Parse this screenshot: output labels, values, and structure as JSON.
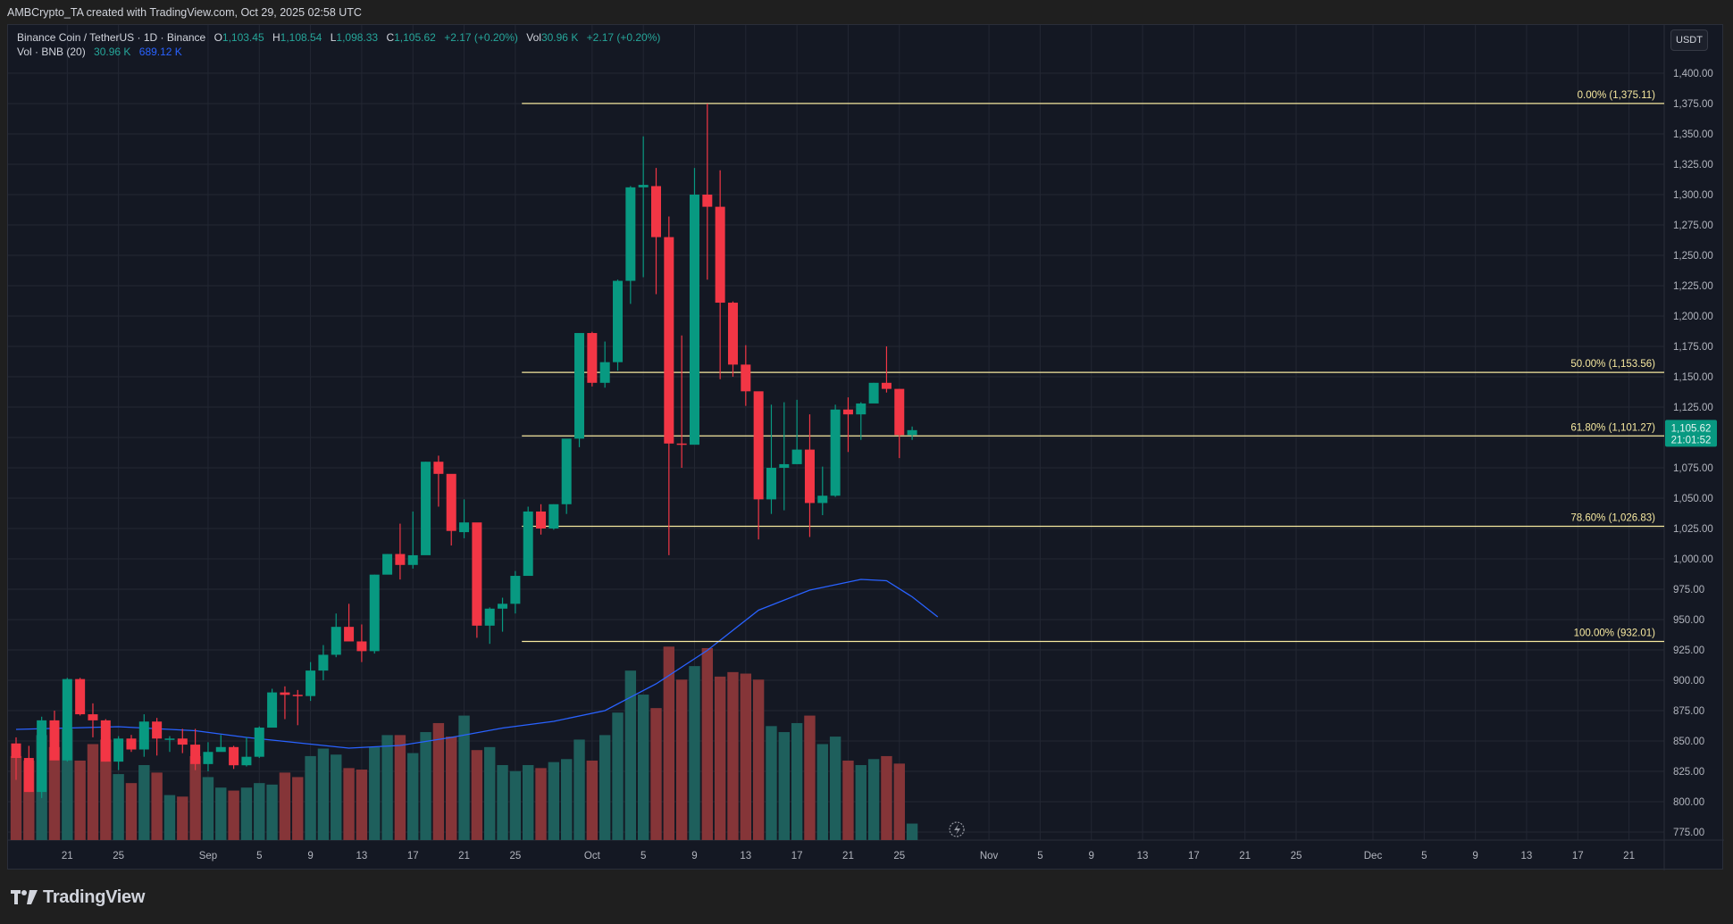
{
  "topbar": {
    "text": "AMBCrypto_TA created with TradingView.com, Oct 29, 2025 02:58 UTC"
  },
  "legend": {
    "symbol": "Binance Coin / TetherUS · 1D · Binance",
    "o_label": "O",
    "o": "1,103.45",
    "h_label": "H",
    "h": "1,108.54",
    "l_label": "L",
    "l": "1,098.33",
    "c_label": "C",
    "c": "1,105.62",
    "change": "+2.17 (+0.20%)",
    "vol_label": "Vol",
    "vol": "30.96 K",
    "vol_change": "+2.17 (+0.20%)",
    "vol_indicator": "Vol · BNB (20)",
    "vol_value": "30.96 K",
    "vol_ma": "689.12 K"
  },
  "currency": "USDT",
  "footer": {
    "brand": "TradingView"
  },
  "colors": {
    "up": "#089981",
    "down": "#f23645",
    "vol_up": "#1e5f5c",
    "vol_down": "#853538",
    "ma": "#2962ff",
    "fib": "#f7e9a0",
    "bg": "#141823",
    "grid": "#232733",
    "text": "#b2b5be"
  },
  "chart_data": {
    "type": "candlestick",
    "title": "Binance Coin / TetherUS · 1D · Binance",
    "ylabel": "USDT",
    "ylim": [
      762,
      1412
    ],
    "y_ticks": [
      775,
      800,
      825,
      850,
      875,
      900,
      925,
      950,
      975,
      1000,
      1025,
      1050,
      1075,
      1100,
      1125,
      1150,
      1175,
      1200,
      1225,
      1250,
      1275,
      1300,
      1325,
      1350,
      1375,
      1400
    ],
    "x_ticks": [
      {
        "label": "21",
        "day": 4
      },
      {
        "label": "25",
        "day": 8
      },
      {
        "label": "Sep",
        "day": 15
      },
      {
        "label": "5",
        "day": 19
      },
      {
        "label": "9",
        "day": 23
      },
      {
        "label": "13",
        "day": 27
      },
      {
        "label": "17",
        "day": 31
      },
      {
        "label": "21",
        "day": 35
      },
      {
        "label": "25",
        "day": 39
      },
      {
        "label": "Oct",
        "day": 45
      },
      {
        "label": "5",
        "day": 49
      },
      {
        "label": "9",
        "day": 53
      },
      {
        "label": "13",
        "day": 57
      },
      {
        "label": "17",
        "day": 61
      },
      {
        "label": "21",
        "day": 65
      },
      {
        "label": "25",
        "day": 69
      },
      {
        "label": "Nov",
        "day": 76
      },
      {
        "label": "5",
        "day": 80
      },
      {
        "label": "9",
        "day": 84
      },
      {
        "label": "13",
        "day": 88
      },
      {
        "label": "17",
        "day": 92
      },
      {
        "label": "21",
        "day": 96
      },
      {
        "label": "25",
        "day": 100
      },
      {
        "label": "Dec",
        "day": 106
      },
      {
        "label": "5",
        "day": 110
      },
      {
        "label": "9",
        "day": 114
      },
      {
        "label": "13",
        "day": 118
      },
      {
        "label": "17",
        "day": 122
      },
      {
        "label": "21",
        "day": 126
      }
    ],
    "start_date": "Aug 17",
    "candles_ohlcv": [
      [
        848,
        853,
        818,
        836,
        560
      ],
      [
        836,
        846,
        808,
        808,
        530
      ],
      [
        808,
        870,
        803,
        867,
        700
      ],
      [
        867,
        875,
        842,
        834,
        620
      ],
      [
        834,
        902,
        833,
        901,
        740
      ],
      [
        901,
        902,
        871,
        872,
        530
      ],
      [
        872,
        881,
        853,
        867,
        640
      ],
      [
        867,
        868,
        833,
        833,
        670
      ],
      [
        833,
        854,
        826,
        852,
        440
      ],
      [
        852,
        855,
        841,
        843,
        380
      ],
      [
        843,
        872,
        837,
        866,
        500
      ],
      [
        866,
        869,
        838,
        852,
        450
      ],
      [
        852,
        854,
        841,
        852,
        300
      ],
      [
        852,
        860,
        840,
        847,
        290
      ],
      [
        847,
        860,
        826,
        831,
        560
      ],
      [
        831,
        849,
        825,
        841,
        420
      ],
      [
        841,
        855,
        843,
        845,
        350
      ],
      [
        845,
        846,
        827,
        830,
        330
      ],
      [
        830,
        853,
        829,
        837,
        350
      ],
      [
        837,
        862,
        836,
        861,
        380
      ],
      [
        861,
        893,
        862,
        890,
        370
      ],
      [
        890,
        895,
        868,
        888,
        450
      ],
      [
        888,
        892,
        863,
        887,
        420
      ],
      [
        887,
        915,
        883,
        908,
        560
      ],
      [
        908,
        929,
        900,
        921,
        610
      ],
      [
        921,
        955,
        919,
        944,
        570
      ],
      [
        944,
        963,
        939,
        932,
        480
      ],
      [
        932,
        946,
        915,
        924,
        470
      ],
      [
        924,
        987,
        922,
        987,
        620
      ],
      [
        987,
        1004,
        990,
        1004,
        700
      ],
      [
        1004,
        1029,
        983,
        995,
        700
      ],
      [
        995,
        1039,
        992,
        1003,
        580
      ],
      [
        1003,
        1080,
        1004,
        1080,
        720
      ],
      [
        1080,
        1085,
        1043,
        1070,
        780
      ],
      [
        1070,
        1062,
        1011,
        1023,
        690
      ],
      [
        1022,
        1049,
        1017,
        1030,
        830
      ],
      [
        1030,
        1028,
        935,
        945,
        600
      ],
      [
        945,
        960,
        930,
        959,
        620
      ],
      [
        959,
        968,
        940,
        963,
        500
      ],
      [
        963,
        990,
        955,
        986,
        460
      ],
      [
        986,
        1043,
        1011,
        1039,
        500
      ],
      [
        1039,
        1045,
        1020,
        1025,
        480
      ],
      [
        1025,
        1045,
        1024,
        1045,
        520
      ],
      [
        1045,
        1091,
        1037,
        1099,
        540
      ],
      [
        1099,
        1180,
        1092,
        1186,
        670
      ],
      [
        1186,
        1187,
        1142,
        1145,
        530
      ],
      [
        1145,
        1179,
        1141,
        1162,
        700
      ],
      [
        1162,
        1230,
        1155,
        1229,
        850
      ],
      [
        1229,
        1307,
        1210,
        1306,
        1130
      ],
      [
        1306,
        1348,
        1232,
        1308,
        970
      ],
      [
        1307,
        1322,
        1218,
        1265,
        880
      ],
      [
        1265,
        1282,
        1003,
        1095,
        1290
      ],
      [
        1095,
        1184,
        1075,
        1094,
        1070
      ],
      [
        1094,
        1322,
        1119,
        1300,
        1160
      ],
      [
        1300,
        1375,
        1230,
        1290,
        1280
      ],
      [
        1290,
        1320,
        1148,
        1211,
        1090
      ],
      [
        1211,
        1212,
        1150,
        1160,
        1120
      ],
      [
        1160,
        1176,
        1126,
        1138,
        1110
      ],
      [
        1138,
        1137,
        1016,
        1049,
        1070
      ],
      [
        1049,
        1127,
        1037,
        1075,
        760
      ],
      [
        1075,
        1129,
        1040,
        1078,
        720
      ],
      [
        1078,
        1131,
        1078,
        1090,
        780
      ],
      [
        1090,
        1119,
        1018,
        1046,
        830
      ],
      [
        1046,
        1076,
        1036,
        1052,
        640
      ],
      [
        1052,
        1127,
        1051,
        1123,
        690
      ],
      [
        1123,
        1133,
        1088,
        1119,
        530
      ],
      [
        1119,
        1129,
        1098,
        1128,
        500
      ],
      [
        1128,
        1145,
        1131,
        1145,
        540
      ],
      [
        1145,
        1175,
        1137,
        1140,
        560
      ],
      [
        1140,
        1140,
        1083,
        1102,
        510
      ],
      [
        1102,
        1109,
        1098,
        1106,
        110
      ]
    ],
    "volume_ma_points": [
      [
        0,
        1,
        0.96
      ],
      [
        8,
        0.98
      ],
      [
        14,
        0.95
      ],
      [
        18,
        0.9
      ],
      [
        22,
        0.86
      ],
      [
        26,
        0.82
      ],
      [
        30,
        0.84
      ],
      [
        34,
        0.9
      ],
      [
        38,
        0.97
      ],
      [
        42,
        1.02
      ],
      [
        46,
        1.1
      ],
      [
        50,
        1.3
      ],
      [
        54,
        1.55
      ],
      [
        58,
        1.85
      ],
      [
        62,
        2.0
      ],
      [
        66,
        2.08
      ],
      [
        68,
        2.07
      ],
      [
        70,
        1.95
      ],
      [
        72,
        1.8
      ]
    ],
    "fib_levels": [
      {
        "label": "0.00% (1,375.11)",
        "price": 1375.11
      },
      {
        "label": "50.00% (1,153.56)",
        "price": 1153.56
      },
      {
        "label": "61.80% (1,101.27)",
        "price": 1101.27
      },
      {
        "label": "78.60% (1,026.83)",
        "price": 1026.83
      },
      {
        "label": "100.00% (932.01)",
        "price": 932.01
      }
    ],
    "fib_start_day": 40,
    "last_price": {
      "value": "1,105.62",
      "countdown": "21:01:52"
    }
  }
}
